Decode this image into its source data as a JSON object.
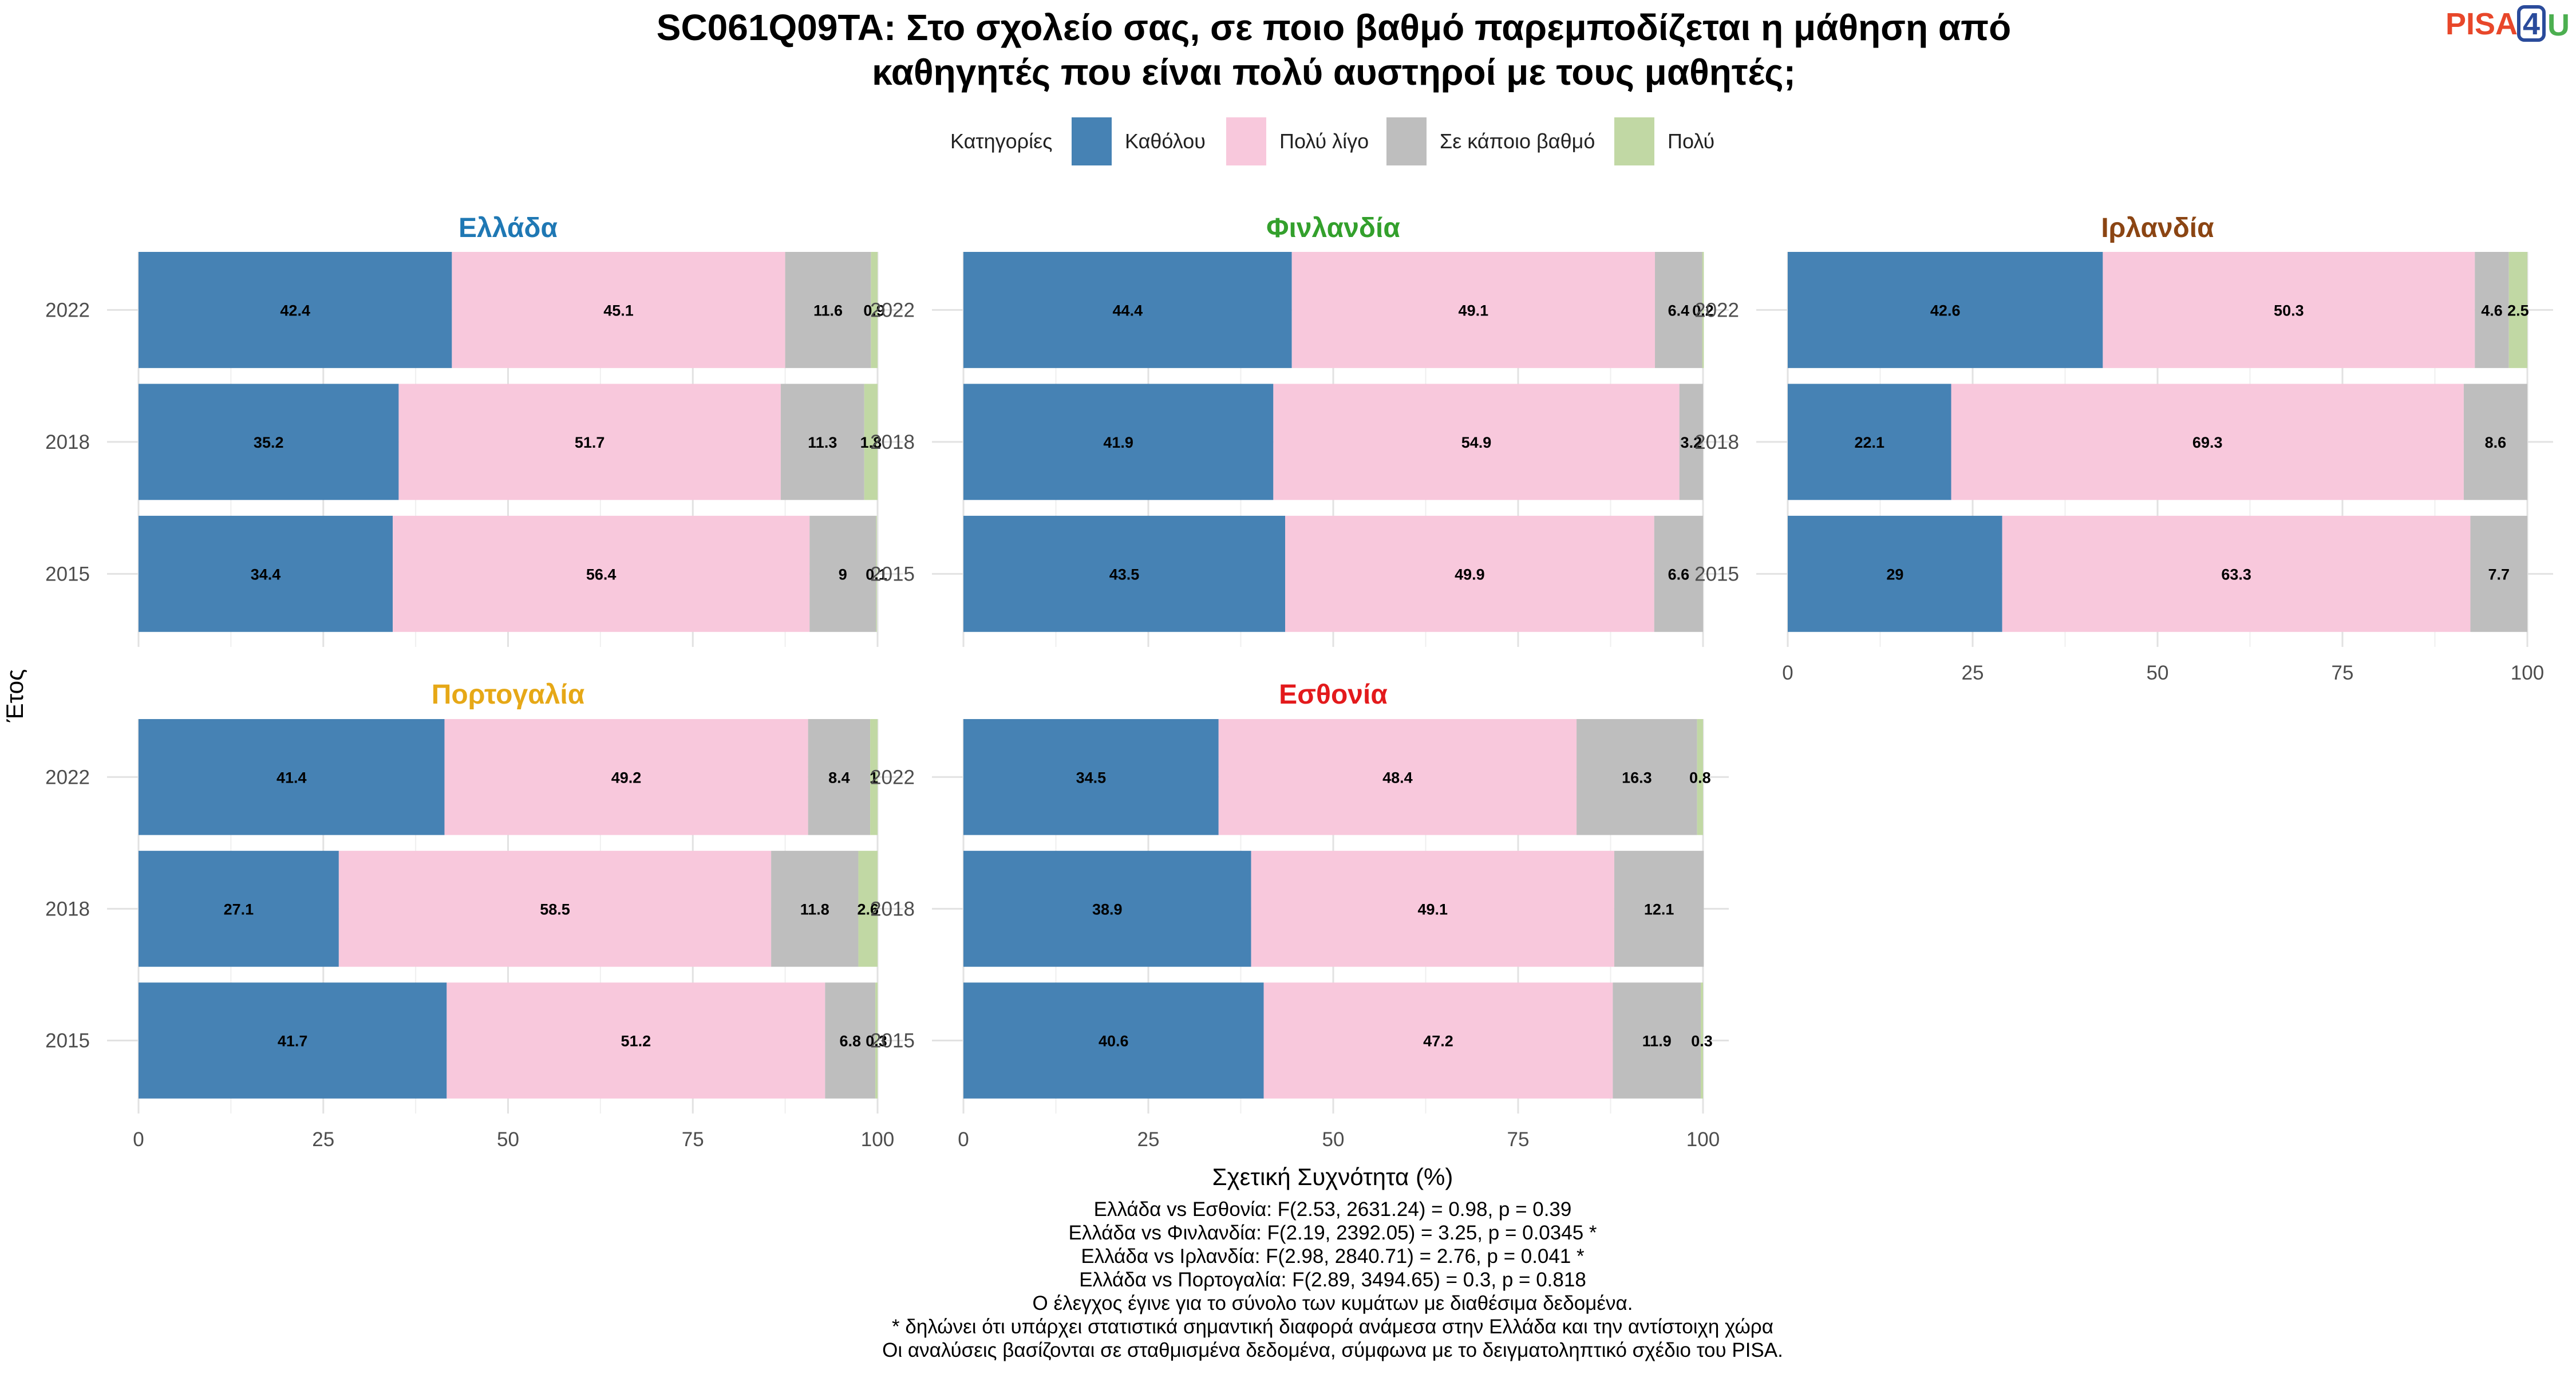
{
  "chart_data": {
    "type": "bar",
    "orientation": "horizontal",
    "stacked": true,
    "title": "SC061Q09TA: Στο σχολείο σας, σε ποιο βαθμό παρεμποδίζεται η μάθηση από καθηγητές που είναι πολύ αυστηροί με τους μαθητές;",
    "title_lines": [
      "SC061Q09TA: Στο σχολείο σας, σε ποιο βαθμό παρεμποδίζεται η μάθηση από",
      "καθηγητές που είναι πολύ αυστηροί με τους μαθητές;"
    ],
    "xlabel": "Σχετική Συχνότητα (%)",
    "ylabel": "Έτος",
    "xlim": [
      0,
      100
    ],
    "xticks": [
      "0",
      "25",
      "50",
      "75",
      "100"
    ],
    "years": [
      "2022",
      "2018",
      "2015"
    ],
    "grid": true,
    "legend": {
      "title": "Κατηγορίες",
      "position": "top",
      "items": [
        {
          "label": "Καθόλου",
          "color": "#4682B4"
        },
        {
          "label": "Πολύ λίγο",
          "color": "#F8C8DC"
        },
        {
          "label": "Σε κάποιο βαθμό",
          "color": "#BEBEBE"
        },
        {
          "label": "Πολύ",
          "color": "#C1D8A4"
        }
      ]
    },
    "panels": [
      {
        "country": "Ελλάδα",
        "title_color": "#1F78B4",
        "rows": [
          {
            "year": "2022",
            "values": [
              42.4,
              45.1,
              11.6,
              0.9
            ],
            "labels": [
              "42.4",
              "45.1",
              "11.6",
              "0.9"
            ]
          },
          {
            "year": "2018",
            "values": [
              35.2,
              51.7,
              11.3,
              1.8
            ],
            "labels": [
              "35.2",
              "51.7",
              "11.3",
              "1.8"
            ]
          },
          {
            "year": "2015",
            "values": [
              34.4,
              56.4,
              9.0,
              0.1
            ],
            "labels": [
              "34.4",
              "56.4",
              "9",
              "0.1"
            ]
          }
        ]
      },
      {
        "country": "Φινλανδία",
        "title_color": "#33A02C",
        "rows": [
          {
            "year": "2022",
            "values": [
              44.4,
              49.1,
              6.4,
              0.2
            ],
            "labels": [
              "44.4",
              "49.1",
              "6.4",
              "0.2"
            ]
          },
          {
            "year": "2018",
            "values": [
              41.9,
              54.9,
              3.2,
              0
            ],
            "labels": [
              "41.9",
              "54.9",
              "3.2",
              ""
            ]
          },
          {
            "year": "2015",
            "values": [
              43.5,
              49.9,
              6.6,
              0
            ],
            "labels": [
              "43.5",
              "49.9",
              "6.6",
              ""
            ]
          }
        ]
      },
      {
        "country": "Ιρλανδία",
        "title_color": "#8B4513",
        "rows": [
          {
            "year": "2022",
            "values": [
              42.6,
              50.3,
              4.6,
              2.5
            ],
            "labels": [
              "42.6",
              "50.3",
              "4.6",
              "2.5"
            ]
          },
          {
            "year": "2018",
            "values": [
              22.1,
              69.3,
              8.6,
              0
            ],
            "labels": [
              "22.1",
              "69.3",
              "8.6",
              ""
            ]
          },
          {
            "year": "2015",
            "values": [
              29.0,
              63.3,
              7.7,
              0
            ],
            "labels": [
              "29",
              "63.3",
              "7.7",
              ""
            ]
          }
        ]
      },
      {
        "country": "Πορτογαλία",
        "title_color": "#E6A817",
        "rows": [
          {
            "year": "2022",
            "values": [
              41.4,
              49.2,
              8.4,
              1.0
            ],
            "labels": [
              "41.4",
              "49.2",
              "8.4",
              "1"
            ]
          },
          {
            "year": "2018",
            "values": [
              27.1,
              58.5,
              11.8,
              2.6
            ],
            "labels": [
              "27.1",
              "58.5",
              "11.8",
              "2.6"
            ]
          },
          {
            "year": "2015",
            "values": [
              41.7,
              51.2,
              6.8,
              0.3
            ],
            "labels": [
              "41.7",
              "51.2",
              "6.8",
              "0.3"
            ]
          }
        ]
      },
      {
        "country": "Εσθονία",
        "title_color": "#E31A1C",
        "rows": [
          {
            "year": "2022",
            "values": [
              34.5,
              48.4,
              16.3,
              0.8
            ],
            "labels": [
              "34.5",
              "48.4",
              "16.3",
              "0.8"
            ]
          },
          {
            "year": "2018",
            "values": [
              38.9,
              49.1,
              12.1,
              0
            ],
            "labels": [
              "38.9",
              "49.1",
              "12.1",
              ""
            ]
          },
          {
            "year": "2015",
            "values": [
              40.6,
              47.2,
              11.9,
              0.3
            ],
            "labels": [
              "40.6",
              "47.2",
              "11.9",
              "0.3"
            ]
          }
        ]
      }
    ],
    "notes": [
      "Ελλάδα vs Εσθονία: F(2.53, 2631.24) = 0.98, p = 0.39",
      "Ελλάδα vs Φινλανδία: F(2.19, 2392.05) = 3.25, p = 0.0345 *",
      "Ελλάδα vs Ιρλανδία: F(2.98, 2840.71) = 2.76, p = 0.041 *",
      "Ελλάδα vs Πορτογαλία: F(2.89, 3494.65) = 0.3, p = 0.818",
      "Ο έλεγχος έγινε για το σύνολο των κυμάτων με διαθέσιμα δεδομένα.",
      "* δηλώνει ότι υπάρχει στατιστικά σημαντική διαφορά ανάμεσα στην Ελλάδα και την αντίστοιχη χώρα",
      "Οι αναλύσεις βασίζονται σε σταθμισμένα δεδομένα, σύμφωνα με το δειγματοληπτικό σχέδιο του PISA."
    ]
  },
  "logo": {
    "text_left": "PISA",
    "text_box": "4",
    "text_right": "U",
    "color_left": "#E8472A",
    "color_box": "#2A4B9B",
    "color_right": "#4CAF50"
  }
}
